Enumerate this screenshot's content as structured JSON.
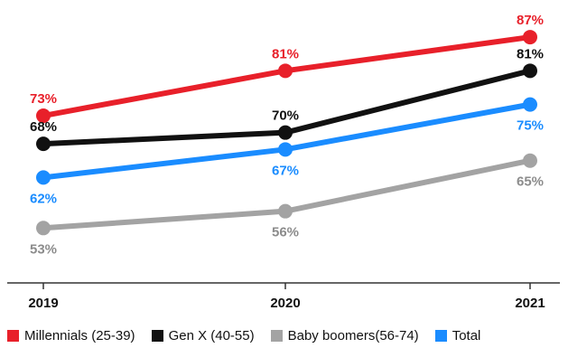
{
  "chart_data": {
    "type": "line",
    "title": "",
    "xlabel": "",
    "ylabel": "",
    "x": [
      "2019",
      "2020",
      "2021"
    ],
    "ylim": [
      45,
      92
    ],
    "grid": false,
    "legend_position": "bottom",
    "series": [
      {
        "name": "Millennials (25-39)",
        "color": "#e8202a",
        "values": [
          73,
          81,
          87
        ],
        "labels": [
          "73%",
          "81%",
          "87%"
        ]
      },
      {
        "name": "Gen X (40-55)",
        "color": "#111111",
        "values": [
          68,
          70,
          81
        ],
        "labels": [
          "68%",
          "70%",
          "81%"
        ]
      },
      {
        "name": "Baby boomers(56-74)",
        "color": "#a3a3a3",
        "values": [
          53,
          56,
          65
        ],
        "labels": [
          "53%",
          "56%",
          "65%"
        ]
      },
      {
        "name": "Total",
        "color": "#1a8cff",
        "values": [
          62,
          67,
          75
        ],
        "labels": [
          "62%",
          "67%",
          "75%"
        ]
      }
    ]
  }
}
